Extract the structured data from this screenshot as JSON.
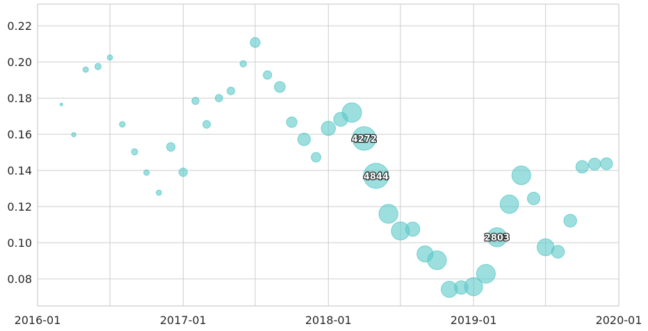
{
  "chart_data": {
    "type": "scatter",
    "title": "",
    "xlabel": "",
    "ylabel": "",
    "xlim": [
      "2016-01-01",
      "2020-01-01"
    ],
    "ylim": [
      0.065,
      0.232
    ],
    "x_ticks": [
      "2016-01",
      "2017-01",
      "2018-01",
      "2019-01",
      "2020-01"
    ],
    "y_ticks": [
      "0.08",
      "0.10",
      "0.12",
      "0.14",
      "0.16",
      "0.18",
      "0.20",
      "0.22"
    ],
    "y_tick_values": [
      0.08,
      0.1,
      0.12,
      0.14,
      0.16,
      0.18,
      0.2,
      0.22
    ],
    "grid": true,
    "marker_color": "#5bc8c8",
    "points": [
      {
        "date": "2016-03-01",
        "y": 0.1765,
        "size": 60
      },
      {
        "date": "2016-04-01",
        "y": 0.1598,
        "size": 150
      },
      {
        "date": "2016-05-01",
        "y": 0.1958,
        "size": 230
      },
      {
        "date": "2016-06-01",
        "y": 0.1975,
        "size": 300
      },
      {
        "date": "2016-07-01",
        "y": 0.2025,
        "size": 220
      },
      {
        "date": "2016-08-01",
        "y": 0.1655,
        "size": 250
      },
      {
        "date": "2016-09-01",
        "y": 0.1503,
        "size": 300
      },
      {
        "date": "2016-10-01",
        "y": 0.1388,
        "size": 240
      },
      {
        "date": "2016-11-01",
        "y": 0.1277,
        "size": 220
      },
      {
        "date": "2016-12-01",
        "y": 0.153,
        "size": 560
      },
      {
        "date": "2017-01-01",
        "y": 0.139,
        "size": 540
      },
      {
        "date": "2017-02-01",
        "y": 0.1785,
        "size": 400
      },
      {
        "date": "2017-03-01",
        "y": 0.1655,
        "size": 450
      },
      {
        "date": "2017-04-01",
        "y": 0.18,
        "size": 420
      },
      {
        "date": "2017-05-01",
        "y": 0.184,
        "size": 450
      },
      {
        "date": "2017-06-01",
        "y": 0.199,
        "size": 320
      },
      {
        "date": "2017-07-01",
        "y": 0.2108,
        "size": 750
      },
      {
        "date": "2017-08-01",
        "y": 0.1928,
        "size": 550
      },
      {
        "date": "2017-09-01",
        "y": 0.1862,
        "size": 900
      },
      {
        "date": "2017-10-01",
        "y": 0.1667,
        "size": 850
      },
      {
        "date": "2017-11-01",
        "y": 0.1572,
        "size": 1200
      },
      {
        "date": "2017-12-01",
        "y": 0.1473,
        "size": 700
      },
      {
        "date": "2018-01-01",
        "y": 0.1633,
        "size": 1550
      },
      {
        "date": "2018-02-01",
        "y": 0.1683,
        "size": 1500
      },
      {
        "date": "2018-03-01",
        "y": 0.172,
        "size": 2900
      },
      {
        "date": "2018-04-01",
        "y": 0.1577,
        "size": 4272,
        "label": "4272"
      },
      {
        "date": "2018-05-01",
        "y": 0.137,
        "size": 4844,
        "label": "4844"
      },
      {
        "date": "2018-06-01",
        "y": 0.116,
        "size": 2750
      },
      {
        "date": "2018-07-01",
        "y": 0.1065,
        "size": 2500
      },
      {
        "date": "2018-08-01",
        "y": 0.1075,
        "size": 1550
      },
      {
        "date": "2018-09-01",
        "y": 0.0938,
        "size": 2000
      },
      {
        "date": "2018-10-01",
        "y": 0.0903,
        "size": 2700
      },
      {
        "date": "2018-11-01",
        "y": 0.0742,
        "size": 2000
      },
      {
        "date": "2018-12-01",
        "y": 0.0752,
        "size": 1400
      },
      {
        "date": "2019-01-01",
        "y": 0.0757,
        "size": 2500
      },
      {
        "date": "2019-02-01",
        "y": 0.0828,
        "size": 2700
      },
      {
        "date": "2019-03-01",
        "y": 0.103,
        "size": 2803,
        "label": "2803"
      },
      {
        "date": "2019-04-01",
        "y": 0.1213,
        "size": 2600
      },
      {
        "date": "2019-05-01",
        "y": 0.1373,
        "size": 2700
      },
      {
        "date": "2019-06-01",
        "y": 0.1245,
        "size": 1200
      },
      {
        "date": "2019-07-01",
        "y": 0.0975,
        "size": 2200
      },
      {
        "date": "2019-08-01",
        "y": 0.095,
        "size": 1250
      },
      {
        "date": "2019-09-01",
        "y": 0.1122,
        "size": 1250
      },
      {
        "date": "2019-10-01",
        "y": 0.142,
        "size": 1200
      },
      {
        "date": "2019-11-01",
        "y": 0.1435,
        "size": 1100
      },
      {
        "date": "2019-12-01",
        "y": 0.1437,
        "size": 1100
      }
    ]
  }
}
